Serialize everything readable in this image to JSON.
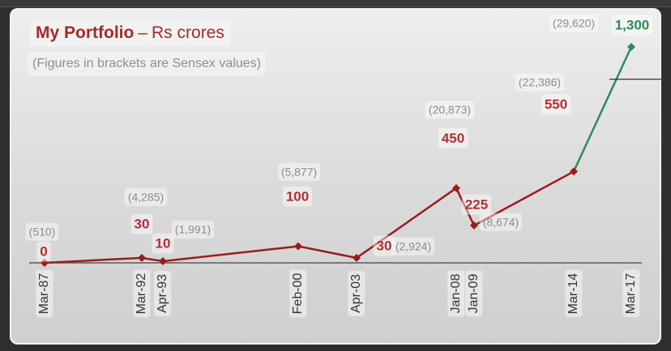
{
  "chart_data": {
    "type": "line",
    "title": "My Portfolio",
    "title_separator": "–",
    "title_unit": "Rs crores",
    "subtitle": "(Figures in brackets are Sensex values)",
    "categories": [
      "Mar-87",
      "Mar-92",
      "Apr-93",
      "Feb-00",
      "Apr-03",
      "Jan-08",
      "Jan-09",
      "Mar-14",
      "Mar-17"
    ],
    "series": [
      {
        "values": [
          0,
          30,
          10,
          100,
          30,
          450,
          225,
          550,
          1300
        ],
        "value_labels": [
          "0",
          "30",
          "10",
          "100",
          "30",
          "450",
          "225",
          "550",
          "1,300"
        ],
        "sensex_labels": [
          "(510)",
          "(4,285)",
          "(1,991)",
          "(5,877)",
          "(2,924)",
          "(20,873)",
          "(8,674)",
          "(22,386)",
          "(29,620)"
        ]
      }
    ],
    "ylim": [
      0,
      1300
    ],
    "grid": false,
    "legend": "none",
    "colors": {
      "main_line": "#9b1c1c",
      "last_segment": "#2e8b57",
      "value_label": "#b03030",
      "last_value_label": "#2e8b57",
      "sensex_label": "#8c8c8c",
      "axis": "#5a5a5a"
    }
  }
}
